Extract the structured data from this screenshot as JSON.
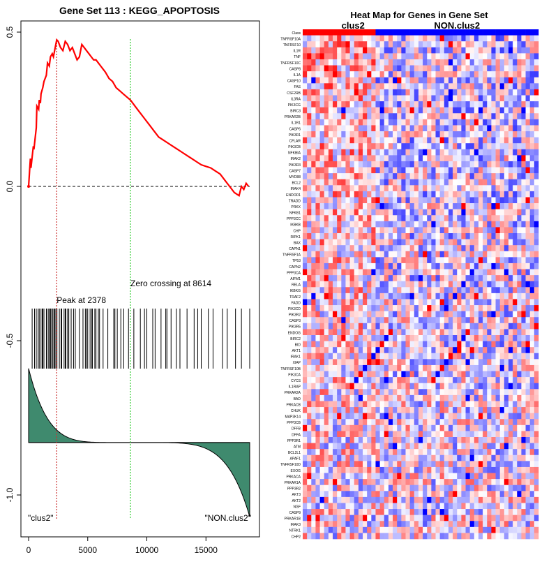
{
  "colors": {
    "es_line": "#ff0000",
    "peak_line": "#cc3333",
    "zero_line": "#33cc33",
    "hits": "#000000",
    "metric_fill": "#3f8a6e",
    "heat_high": "#ff0000",
    "heat_low": "#0000ff",
    "class_clus2": "#ff0000",
    "class_non": "#0000ff"
  },
  "chart_data": [
    {
      "type": "line",
      "title": "Gene Set  113 : KEGG_APOPTOSIS",
      "xlabel": "",
      "ylabel": "",
      "xlim": [
        0,
        18700
      ],
      "ylim": [
        -1.1,
        0.52
      ],
      "x_ticks": [
        0,
        5000,
        10000,
        15000
      ],
      "y_ticks": [
        0.5,
        0.0,
        -0.5,
        -1.0
      ],
      "x_tick_labels": [
        "0",
        "5000",
        "10000",
        "15000"
      ],
      "y_tick_labels": [
        "0.5",
        "0.0",
        "-0.5",
        "-1.0"
      ],
      "grid": false,
      "peak": {
        "x": 2378,
        "label": "Peak at 2378"
      },
      "zero_crossing": {
        "x": 8614,
        "label": "Zero crossing at 8614"
      },
      "zero_reference_y": 0.0,
      "left_class_label": "\"clus2\"",
      "right_class_label": "\"NON.clus2\"",
      "series": [
        {
          "values_x": [
            0,
            150,
            200,
            400,
            450,
            650,
            700,
            850,
            900,
            1000,
            1050,
            1200,
            1300,
            1500,
            1600,
            1750,
            1850,
            2000,
            2100,
            2200,
            2300,
            2378,
            2500,
            2700,
            2900,
            3100,
            3300,
            3500,
            3700,
            3900,
            4100,
            4300,
            4500,
            4700,
            4900,
            5100,
            5300,
            5500,
            5700,
            5900,
            6100,
            6300,
            6500,
            6800,
            7100,
            7400,
            7700,
            8000,
            8300,
            8614,
            9000,
            9400,
            9800,
            10200,
            10600,
            11000,
            11400,
            11800,
            12200,
            12600,
            13000,
            13400,
            13800,
            14200,
            14600,
            15000,
            15400,
            15800,
            16200,
            16600,
            17000,
            17400,
            17800,
            18000,
            18200,
            18400,
            18600
          ],
          "values": [
            0.0,
            0.09,
            0.06,
            0.13,
            0.12,
            0.19,
            0.26,
            0.25,
            0.28,
            0.27,
            0.3,
            0.32,
            0.34,
            0.36,
            0.4,
            0.39,
            0.42,
            0.43,
            0.42,
            0.44,
            0.46,
            0.475,
            0.47,
            0.45,
            0.44,
            0.47,
            0.46,
            0.44,
            0.45,
            0.43,
            0.41,
            0.42,
            0.46,
            0.45,
            0.44,
            0.43,
            0.42,
            0.41,
            0.41,
            0.4,
            0.39,
            0.38,
            0.37,
            0.35,
            0.34,
            0.32,
            0.31,
            0.3,
            0.29,
            0.28,
            0.26,
            0.24,
            0.22,
            0.2,
            0.18,
            0.16,
            0.15,
            0.14,
            0.13,
            0.12,
            0.11,
            0.1,
            0.09,
            0.08,
            0.07,
            0.065,
            0.06,
            0.05,
            0.04,
            0.02,
            0.0,
            -0.02,
            -0.03,
            0.0,
            -0.01,
            0.01,
            0.0
          ]
        }
      ],
      "hit_positions": [
        300,
        500,
        650,
        800,
        900,
        1050,
        1150,
        1200,
        1300,
        1500,
        1550,
        1700,
        1800,
        1850,
        1950,
        2050,
        2150,
        2200,
        2300,
        2400,
        2600,
        2750,
        2800,
        3000,
        3100,
        3150,
        3300,
        3400,
        3600,
        3800,
        3950,
        4300,
        4600,
        4800,
        4900,
        5000,
        5200,
        5350,
        5400,
        5600,
        5700,
        5900,
        6000,
        6300,
        6700,
        7200,
        7300,
        7500,
        7800,
        8050,
        8450,
        8900,
        9450,
        9800,
        10000,
        10500,
        10700,
        11200,
        11600,
        11700,
        12050,
        12500,
        12800,
        13400,
        14000,
        14300,
        14600,
        15200,
        15600,
        16400,
        16800,
        17500,
        18000,
        18700
      ],
      "metric_top": -0.59,
      "metric_base": -0.83,
      "metric_bottom": -1.07
    },
    {
      "type": "heatmap",
      "title": "Heat Map for Genes in Gene Set",
      "class_labels": [
        "clus2",
        "NON.clus2"
      ],
      "class_split": 17,
      "n_columns": 55,
      "row_labels": [
        "Class",
        "TNFRSF10A",
        "TNFRSF10",
        "IL1R",
        "TNF",
        "TNFRSF10C",
        "CASP8",
        "IL1A",
        "CASP10",
        "FAS",
        "CSF2RB",
        "IL3RA",
        "PIK3CG",
        "BIRC3",
        "PRKAR2B",
        "IL1R1",
        "CASP6",
        "PIK3R1",
        "CFLAR",
        "PIK3CB",
        "NFKBIA",
        "IRAK2",
        "PIK3R3",
        "CASP7",
        "MYD88",
        "BCL2",
        "IRAK4",
        "ENDOD1",
        "TRADD",
        "PRKX",
        "NFKB1",
        "PPP3CC",
        "IKBKB",
        "CHP",
        "RIPK1",
        "BAX",
        "CAPN1",
        "TNFRSF1A",
        "TP53",
        "CAPN2",
        "PPP3CA",
        "AIFM1",
        "RELA",
        "IKBKG",
        "TRAF2",
        "FADD",
        "PIK3CD",
        "PIK3R2",
        "CASP3",
        "PIK3R5",
        "ENDOG",
        "BIRC2",
        "BID",
        "AKT1",
        "IRAK1",
        "XIAP",
        "TNFRSF10B",
        "PIK3CA",
        "CYCS",
        "IL1RAP",
        "PRKAR2A",
        "BAD",
        "PRKACB",
        "CHUK",
        "MAP3K14",
        "PPP3CB",
        "DFFB",
        "DFFA",
        "PPP3R1",
        "ATM",
        "BCL2L1",
        "APAF1",
        "TNFRSF10D",
        "EXOG",
        "PRKACA",
        "PRKAR1A",
        "PPP3R2",
        "AKT3",
        "AKT2",
        "NGF",
        "CASP9",
        "PRKAR1B",
        "IRAK3",
        "NTRK1",
        "CHP2"
      ],
      "seed": 113
    }
  ]
}
